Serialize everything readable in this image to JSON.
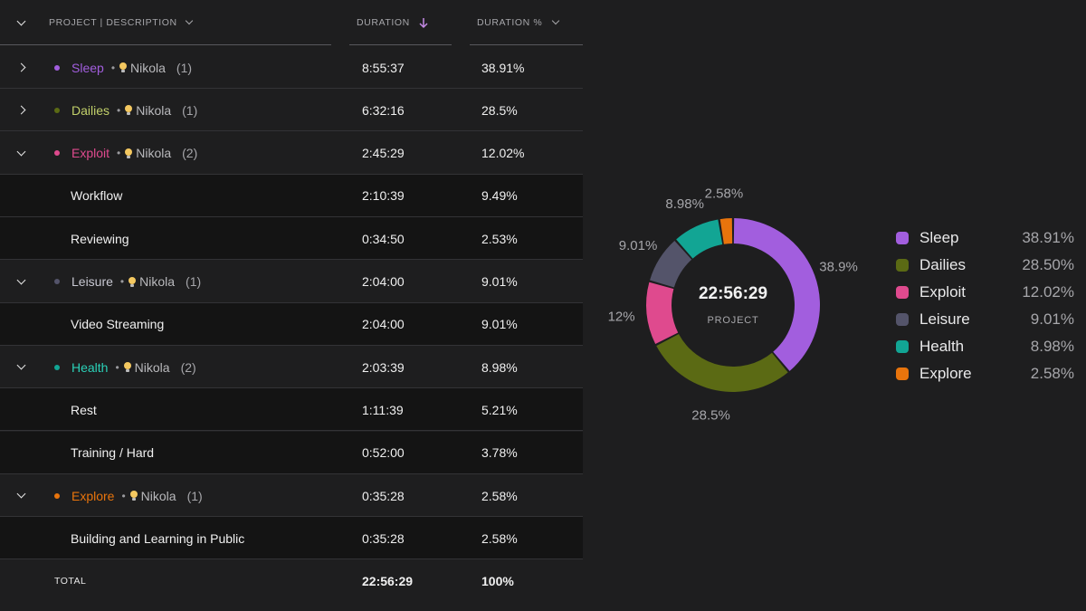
{
  "table": {
    "headers": {
      "project": "PROJECT | DESCRIPTION",
      "duration": "DURATION",
      "duration_pct": "DURATION %"
    },
    "rows": [
      {
        "kind": "project",
        "expanded": false,
        "name": "Sleep",
        "color": "#a25ede",
        "client": "Nikola",
        "count": "(1)",
        "duration": "8:55:37",
        "pct": "38.91%"
      },
      {
        "kind": "project",
        "expanded": false,
        "name": "Dailies",
        "color": "#5b6a14",
        "text_color": "#c2d06a",
        "client": "Nikola",
        "count": "(1)",
        "duration": "6:32:16",
        "pct": "28.5%"
      },
      {
        "kind": "project",
        "expanded": true,
        "name": "Exploit",
        "color": "#df4a8e",
        "client": "Nikola",
        "count": "(2)",
        "duration": "2:45:29",
        "pct": "12.02%"
      },
      {
        "kind": "entry",
        "name": "Workflow",
        "duration": "2:10:39",
        "pct": "9.49%"
      },
      {
        "kind": "entry",
        "name": "Reviewing",
        "duration": "0:34:50",
        "pct": "2.53%"
      },
      {
        "kind": "project",
        "expanded": true,
        "name": "Leisure",
        "color": "#54546a",
        "text_color": "#c8c8d2",
        "client": "Nikola",
        "count": "(1)",
        "duration": "2:04:00",
        "pct": "9.01%"
      },
      {
        "kind": "entry",
        "name": "Video Streaming",
        "duration": "2:04:00",
        "pct": "9.01%"
      },
      {
        "kind": "project",
        "expanded": true,
        "name": "Health",
        "color": "#12a594",
        "text_color": "#2bd1b8",
        "client": "Nikola",
        "count": "(2)",
        "duration": "2:03:39",
        "pct": "8.98%"
      },
      {
        "kind": "entry",
        "name": "Rest",
        "duration": "1:11:39",
        "pct": "5.21%"
      },
      {
        "kind": "entry",
        "name": "Training / Hard",
        "duration": "0:52:00",
        "pct": "3.78%"
      },
      {
        "kind": "project",
        "expanded": true,
        "name": "Explore",
        "color": "#e8740c",
        "client": "Nikola",
        "count": "(1)",
        "duration": "0:35:28",
        "pct": "2.58%"
      },
      {
        "kind": "entry",
        "name": "Building and Learning in Public",
        "duration": "0:35:28",
        "pct": "2.58%"
      }
    ],
    "total": {
      "label": "TOTAL",
      "duration": "22:56:29",
      "pct": "100%"
    }
  },
  "donut": {
    "center_value": "22:56:29",
    "center_label": "PROJECT"
  },
  "chart_data": {
    "type": "pie",
    "categories": [
      "Sleep",
      "Dailies",
      "Exploit",
      "Leisure",
      "Health",
      "Explore"
    ],
    "values": [
      38.91,
      28.5,
      12.02,
      9.01,
      8.98,
      2.58
    ],
    "slice_labels": [
      "38.9%",
      "28.5%",
      "12%",
      "9.01%",
      "8.98%",
      "2.58%"
    ],
    "legend_values": [
      "38.91%",
      "28.50%",
      "12.02%",
      "9.01%",
      "8.98%",
      "2.58%"
    ],
    "colors": [
      "#a25ede",
      "#5b6a14",
      "#df4a8e",
      "#54546a",
      "#12a594",
      "#e8740c"
    ],
    "legend": "right"
  }
}
